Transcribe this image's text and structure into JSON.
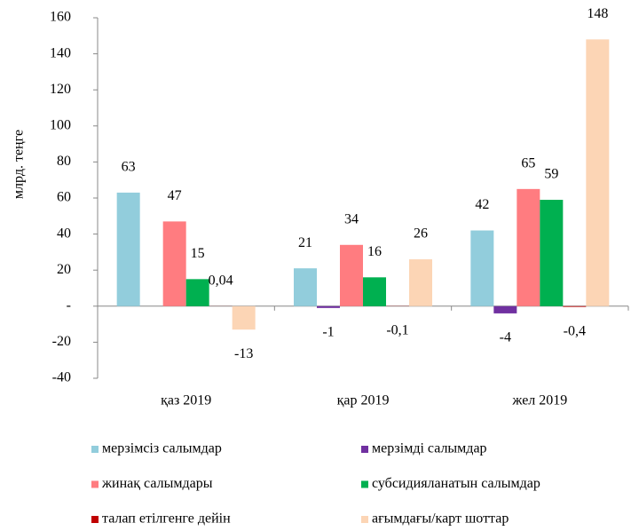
{
  "chart_data": {
    "type": "bar",
    "y_label": "млрд. теңге",
    "categories": [
      "қаз 2019",
      "қар 2019",
      "жел 2019"
    ],
    "series": [
      {
        "name": "мерзімсіз салымдар",
        "color": "#92cddc",
        "values": [
          63,
          21,
          42
        ]
      },
      {
        "name": "мерзімді салымдар",
        "color": "#7030a0",
        "values": [
          null,
          -1,
          -4
        ]
      },
      {
        "name": "жинақ салымдары",
        "color": "#ff7c80",
        "values": [
          47,
          34,
          65
        ]
      },
      {
        "name": "субсидияланатын салымдар",
        "color": "#00b050",
        "values": [
          15,
          16,
          59
        ]
      },
      {
        "name": "талап етілгенге дейін",
        "color": "#c00000",
        "values": [
          0.04,
          -0.1,
          -0.4
        ],
        "value_labels": [
          "0,04",
          "-0,1",
          "-0,4"
        ]
      },
      {
        "name": "ағымдағы/карт шоттар",
        "color": "#fcd5b5",
        "values": [
          -13,
          26,
          148
        ]
      }
    ],
    "ylim": [
      -40,
      160
    ],
    "yticks": [
      -40,
      -20,
      {
        "value": 0,
        "label": "-"
      },
      20,
      40,
      60,
      80,
      100,
      120,
      140,
      160
    ]
  }
}
